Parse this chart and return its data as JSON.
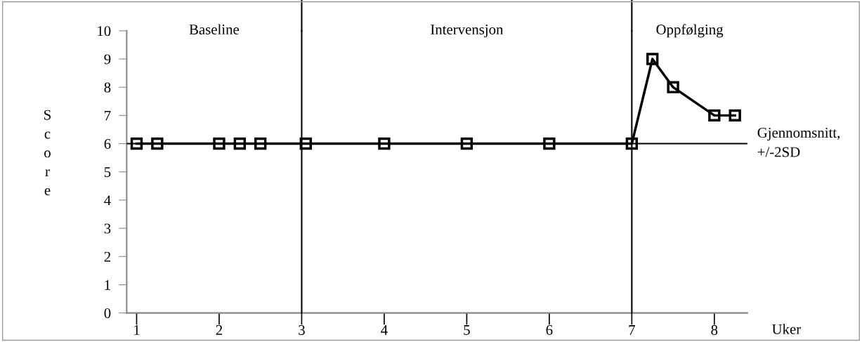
{
  "chart_data": {
    "type": "line",
    "xlabel": "Uker",
    "ylabel": "Score",
    "x": [
      1,
      1.25,
      2,
      2.25,
      2.5,
      3.05,
      4,
      5,
      6,
      7,
      7.25,
      7.5,
      8,
      8.25
    ],
    "series": [
      {
        "color": "#000000",
        "values": [
          6,
          6,
          6,
          6,
          6,
          6,
          6,
          6,
          6,
          6,
          9,
          8,
          7,
          7
        ]
      }
    ],
    "xlim": [
      0.88,
      8.4
    ],
    "xticks": [
      1,
      2,
      3,
      4,
      5,
      6,
      7,
      8
    ],
    "ylim": [
      0,
      10
    ],
    "yticks": [
      0,
      1,
      2,
      3,
      4,
      5,
      6,
      7,
      8,
      9,
      10
    ],
    "marker": "square",
    "line_style": "solid",
    "grid": false,
    "legend": false,
    "ref_lines": [
      {
        "axis": "y",
        "value": 6,
        "label": "Gjennomsnitt,\n+/-2SD"
      },
      {
        "axis": "x",
        "value": 3,
        "label": null
      },
      {
        "axis": "x",
        "value": 7,
        "label": null
      }
    ],
    "annotations": [
      "Baseline",
      "Intervensjon",
      "Oppfølging"
    ]
  }
}
